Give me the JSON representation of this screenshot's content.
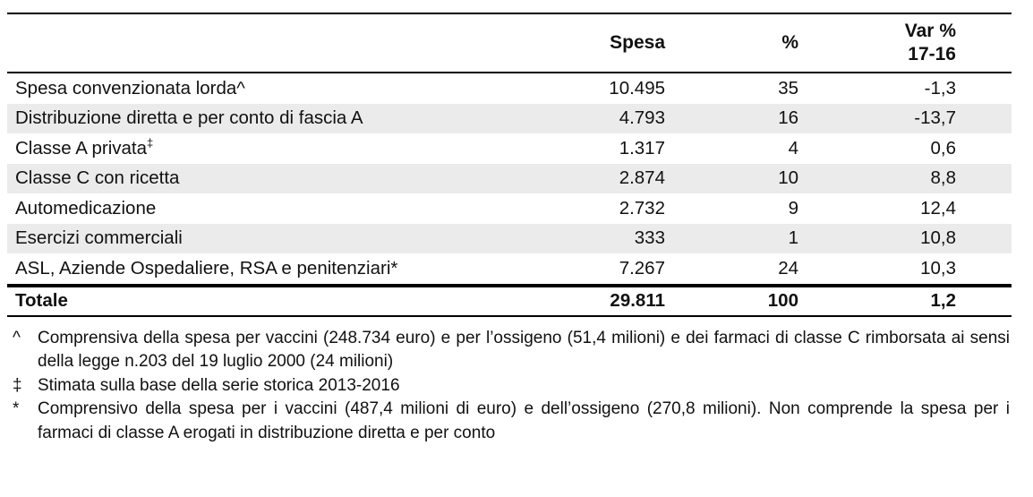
{
  "table": {
    "columns": {
      "label": "",
      "spesa": "Spesa",
      "pct": "%",
      "var_line1": "Var %",
      "var_line2": "17-16"
    },
    "rows": [
      {
        "label": "Spesa convenzionata lorda^",
        "spesa": "10.495",
        "pct": "35",
        "var": "-1,3"
      },
      {
        "label": "Distribuzione diretta e per conto di fascia A",
        "spesa": "4.793",
        "pct": "16",
        "var": "-13,7"
      },
      {
        "label": "Classe A privata",
        "sup": "‡",
        "spesa": "1.317",
        "pct": "4",
        "var": "0,6"
      },
      {
        "label": "Classe C con ricetta",
        "spesa": "2.874",
        "pct": "10",
        "var": "8,8"
      },
      {
        "label": "Automedicazione",
        "spesa": "2.732",
        "pct": "9",
        "var": "12,4"
      },
      {
        "label": "Esercizi commerciali",
        "spesa": "333",
        "pct": "1",
        "var": "10,8"
      },
      {
        "label": "ASL, Aziende Ospedaliere, RSA e penitenziari*",
        "spesa": "7.267",
        "pct": "24",
        "var": "10,3"
      }
    ],
    "total": {
      "label": "Totale",
      "spesa": "29.811",
      "pct": "100",
      "var": "1,2"
    }
  },
  "footnotes": [
    {
      "marker": "^",
      "text": "Comprensiva della spesa per vaccini (248.734 euro) e per l’ossigeno (51,4 milioni) e dei farmaci di classe C rimborsata ai sensi della legge n.203 del 19 luglio 2000 (24 milioni)"
    },
    {
      "marker": "‡",
      "text": "Stimata sulla base della serie storica 2013-2016"
    },
    {
      "marker": "*",
      "text": "Comprensivo della spesa per i vaccini (487,4 milioni di euro) e dell’ossigeno (270,8 milioni). Non comprende la spesa per i farmaci di classe A erogati in distribuzione diretta e per conto"
    }
  ],
  "colors": {
    "stripe": "#ebebeb",
    "rule": "#000000",
    "text": "#111111"
  }
}
